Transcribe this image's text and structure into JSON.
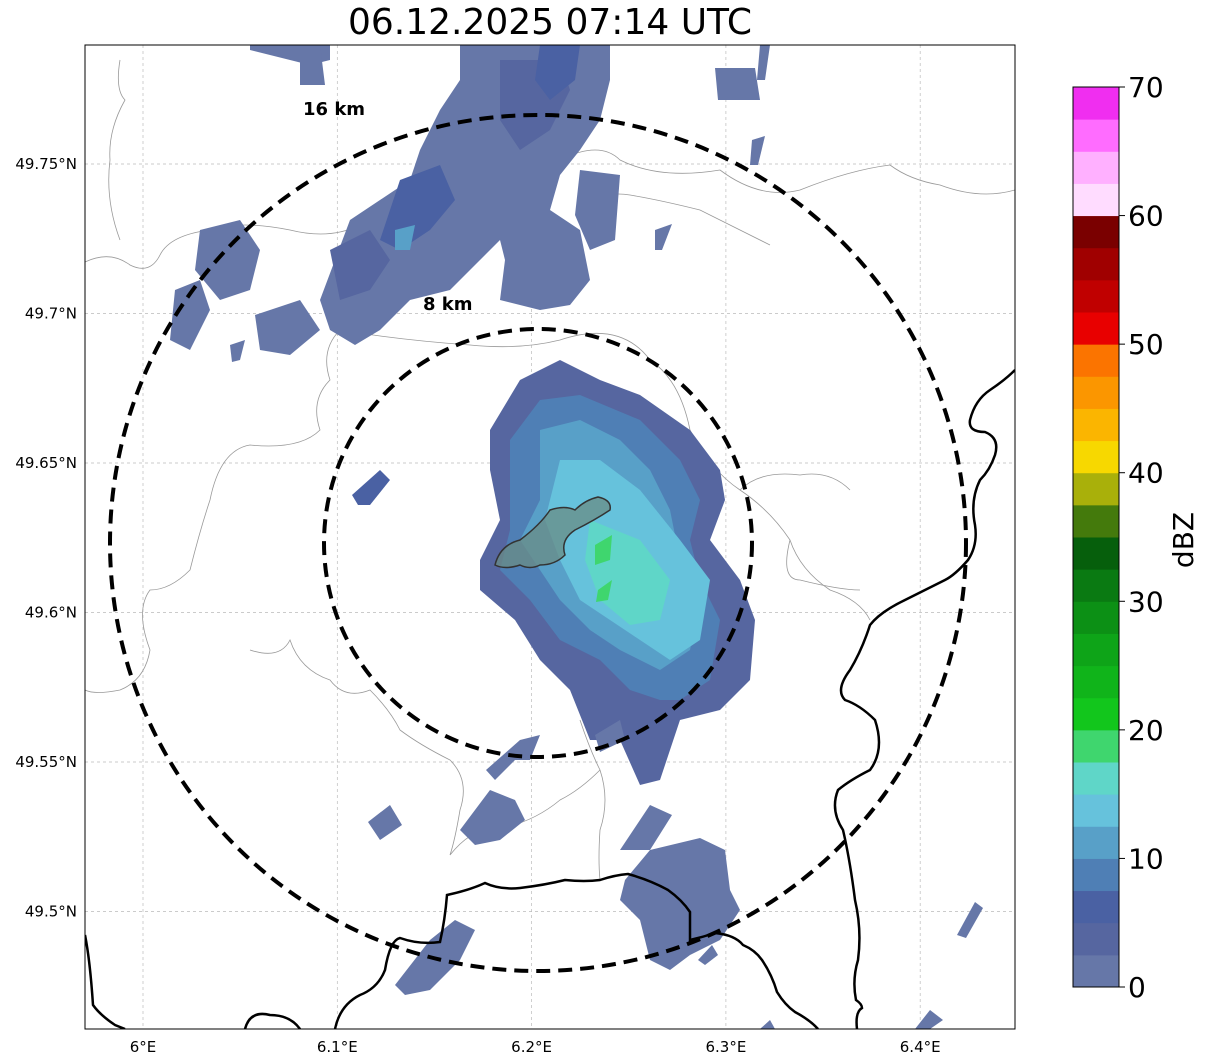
{
  "title": "06.12.2025 07:14 UTC",
  "map": {
    "lon_ticks": [
      {
        "value": 6.0,
        "label": "6°E"
      },
      {
        "value": 6.1,
        "label": "6.1°E"
      },
      {
        "value": 6.2,
        "label": "6.2°E"
      },
      {
        "value": 6.3,
        "label": "6.3°E"
      },
      {
        "value": 6.4,
        "label": "6.4°E"
      }
    ],
    "lat_ticks": [
      {
        "value": 49.75,
        "label": "49.75°N"
      },
      {
        "value": 49.7,
        "label": "49.7°N"
      },
      {
        "value": 49.65,
        "label": "49.65°N"
      },
      {
        "value": 49.6,
        "label": "49.6°N"
      },
      {
        "value": 49.55,
        "label": "49.55°N"
      },
      {
        "value": 49.5,
        "label": "49.5°N"
      }
    ],
    "lon_range": [
      5.97,
      6.45
    ],
    "lat_range": [
      49.46,
      49.79
    ],
    "gridlines": true,
    "range_rings": [
      {
        "label": "8 km"
      },
      {
        "label": "16 km"
      }
    ]
  },
  "colorbar": {
    "label": "dBZ",
    "min": 0,
    "max": 70,
    "ticks": [
      "0",
      "10",
      "20",
      "30",
      "40",
      "50",
      "60",
      "70"
    ],
    "colors": [
      "#6677a8",
      "#5666a0",
      "#4a61a3",
      "#4f7fb5",
      "#58a0c8",
      "#66c2dc",
      "#5fd6c8",
      "#3fd66e",
      "#12c61c",
      "#10b41a",
      "#0ea418",
      "#0c9015",
      "#0a7a12",
      "#065f0c",
      "#447a0c",
      "#a9b00a",
      "#f7d800",
      "#fbb500",
      "#fb9600",
      "#fb7400",
      "#e80000",
      "#c00000",
      "#a00000",
      "#7a0000",
      "#ffdcff",
      "#ffb0ff",
      "#ff6cff",
      "#f02ef0"
    ]
  }
}
